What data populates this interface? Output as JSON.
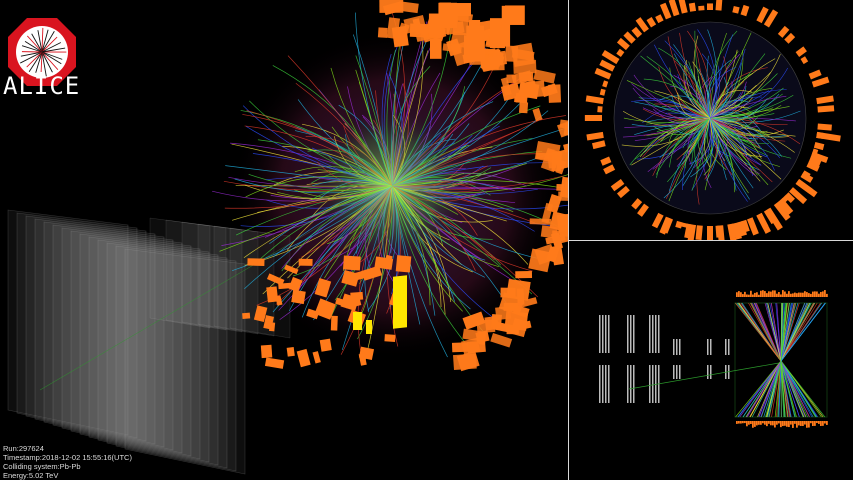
{
  "logo": {
    "text": "ALICE",
    "icon": "alice-starburst-octagon"
  },
  "event_info": {
    "run": "Run:297624",
    "timestamp": "Timestamp:2018-12-02 15:55:16(UTC)",
    "colliding_system": "Colliding system:Pb-Pb",
    "energy": "Energy:5.02 TeV"
  },
  "colors": {
    "background": "#000000",
    "calorimeter": "#ff7a1a",
    "highlight": "#ffe600",
    "logo_red": "#d9141f",
    "divider": "#d9d9d9"
  },
  "track_colors": [
    "#3cd53c",
    "#7fe01a",
    "#2a4dff",
    "#9a2bd6",
    "#e03a2a",
    "#f0e23a",
    "#20b0e0"
  ]
}
